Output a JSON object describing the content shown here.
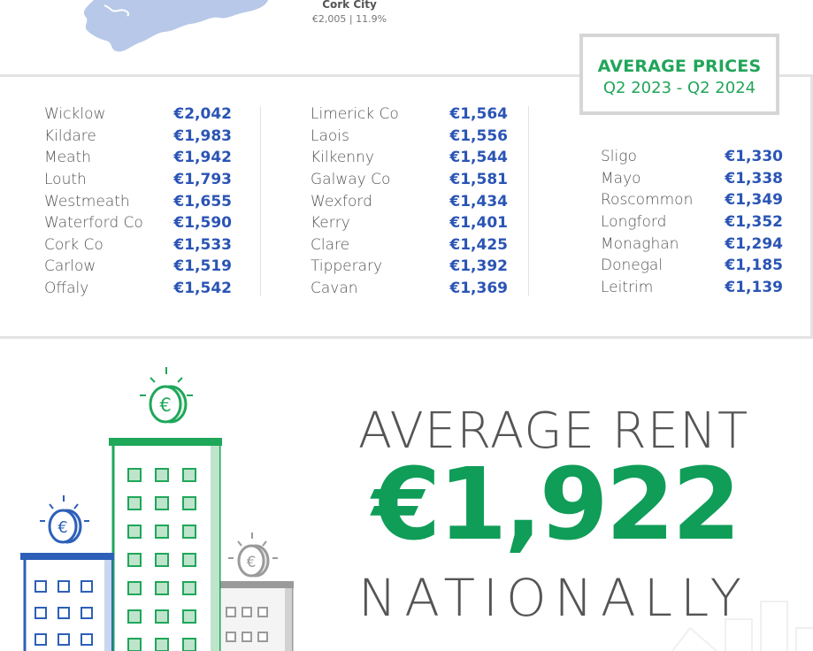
{
  "map": {
    "city_label": "Cork City",
    "city_value": "€2,005 | 11.9%",
    "map_color": "#b7c8e8"
  },
  "badge": {
    "title": "AVERAGE PRICES",
    "period": "Q2 2023 - Q2 2024",
    "color": "#21a55a"
  },
  "counties": {
    "column1": [
      {
        "name": "Wicklow",
        "price": "€2,042"
      },
      {
        "name": "Kildare",
        "price": "€1,983"
      },
      {
        "name": "Meath",
        "price": "€1,942"
      },
      {
        "name": "Louth",
        "price": "€1,793"
      },
      {
        "name": "Westmeath",
        "price": "€1,655"
      },
      {
        "name": "Waterford Co",
        "price": "€1,590"
      },
      {
        "name": "Cork Co",
        "price": "€1,533"
      },
      {
        "name": "Carlow",
        "price": "€1,519"
      },
      {
        "name": "Offaly",
        "price": "€1,542"
      }
    ],
    "column2": [
      {
        "name": "Limerick Co",
        "price": "€1,564"
      },
      {
        "name": "Laois",
        "price": "€1,556"
      },
      {
        "name": "Kilkenny",
        "price": "€1,544"
      },
      {
        "name": "Galway Co",
        "price": "€1,581"
      },
      {
        "name": "Wexford",
        "price": "€1,434"
      },
      {
        "name": "Kerry",
        "price": "€1,401"
      },
      {
        "name": "Clare",
        "price": "€1,425"
      },
      {
        "name": "Tipperary",
        "price": "€1,392"
      },
      {
        "name": "Cavan",
        "price": "€1,369"
      }
    ],
    "column3": [
      {
        "name": "Sligo",
        "price": "€1,330"
      },
      {
        "name": "Mayo",
        "price": "€1,338"
      },
      {
        "name": "Roscommon",
        "price": "€1,349"
      },
      {
        "name": "Longford",
        "price": "€1,352"
      },
      {
        "name": "Monaghan",
        "price": "€1,294"
      },
      {
        "name": "Donegal",
        "price": "€1,185"
      },
      {
        "name": "Leitrim",
        "price": "€1,139"
      }
    ]
  },
  "headline": {
    "line1": "AVERAGE RENT",
    "amount": "€1,922",
    "line3": "NATIONALLY",
    "amount_color": "#0f9d58"
  },
  "illustration": {
    "coin_symbol": "€",
    "icon": "buildings-with-euro-coins",
    "green": "#1fa75a",
    "blue": "#2d5fb8",
    "grey": "#9a9a9a"
  }
}
